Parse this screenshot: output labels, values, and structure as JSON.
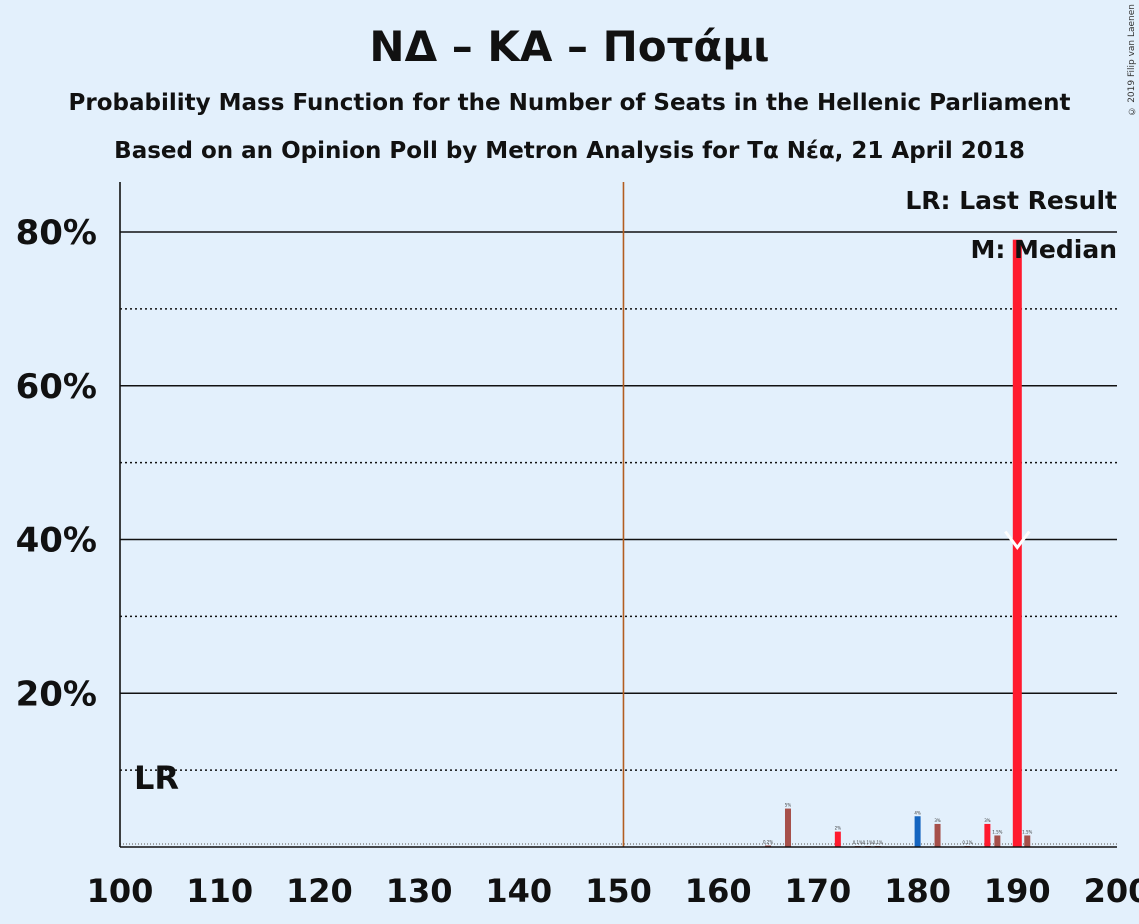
{
  "header": {
    "title": "ΝΔ – ΚΑ – Ποτάμι",
    "subtitle1": "Probability Mass Function for the Number of Seats in the Hellenic Parliament",
    "subtitle2": "Based on an Opinion Poll by Metron Analysis for Τα Νέα, 21 April 2018",
    "copyright": "© 2019 Filip van Laenen"
  },
  "legend": {
    "lr": "LR: Last Result",
    "median": "M: Median"
  },
  "colors": {
    "background": "#e3f0fc",
    "bar": "#a6504a",
    "median_bar": "#ff1a2e",
    "red_bar": "#ff1a2e",
    "last_result_bar": "#1565c0",
    "majority_line": "#b25d20"
  },
  "chart_data": {
    "type": "bar",
    "xlabel": "",
    "ylabel": "",
    "xlim": [
      100,
      200
    ],
    "ylim": [
      0,
      87
    ],
    "x_ticks": [
      "100",
      "110",
      "120",
      "130",
      "140",
      "150",
      "160",
      "170",
      "180",
      "190",
      "200"
    ],
    "y_ticks": [
      "20%",
      "40%",
      "60%",
      "80%"
    ],
    "y_tick_values": [
      20,
      40,
      60,
      80
    ],
    "dotted_gridlines": [
      10,
      30,
      50,
      70
    ],
    "majority_line_x": 151,
    "last_result_seats": 180,
    "last_result_label": "LR",
    "median_seats": 190,
    "median_marker": "M",
    "bars": [
      {
        "seats": 165,
        "value": 0.2,
        "label": "0.2%",
        "kind": "normal"
      },
      {
        "seats": 167,
        "value": 5,
        "label": "5%",
        "kind": "normal"
      },
      {
        "seats": 172,
        "value": 2,
        "label": "2%",
        "kind": "red"
      },
      {
        "seats": 174,
        "value": 0.1,
        "label": "0.1%",
        "kind": "normal"
      },
      {
        "seats": 175,
        "value": 0.1,
        "label": "0.1%",
        "kind": "normal"
      },
      {
        "seats": 176,
        "value": 0.1,
        "label": "0.1%",
        "kind": "normal"
      },
      {
        "seats": 180,
        "value": 4,
        "label": "4%",
        "kind": "last_result"
      },
      {
        "seats": 182,
        "value": 3,
        "label": "3%",
        "kind": "normal"
      },
      {
        "seats": 185,
        "value": 0.1,
        "label": "0.1%",
        "kind": "normal"
      },
      {
        "seats": 187,
        "value": 3,
        "label": "3%",
        "kind": "red"
      },
      {
        "seats": 188,
        "value": 1.5,
        "label": "1.5%",
        "kind": "normal"
      },
      {
        "seats": 190,
        "value": 79,
        "label": "79%",
        "kind": "median"
      },
      {
        "seats": 191,
        "value": 1.5,
        "label": "1.5%",
        "kind": "normal"
      }
    ]
  }
}
